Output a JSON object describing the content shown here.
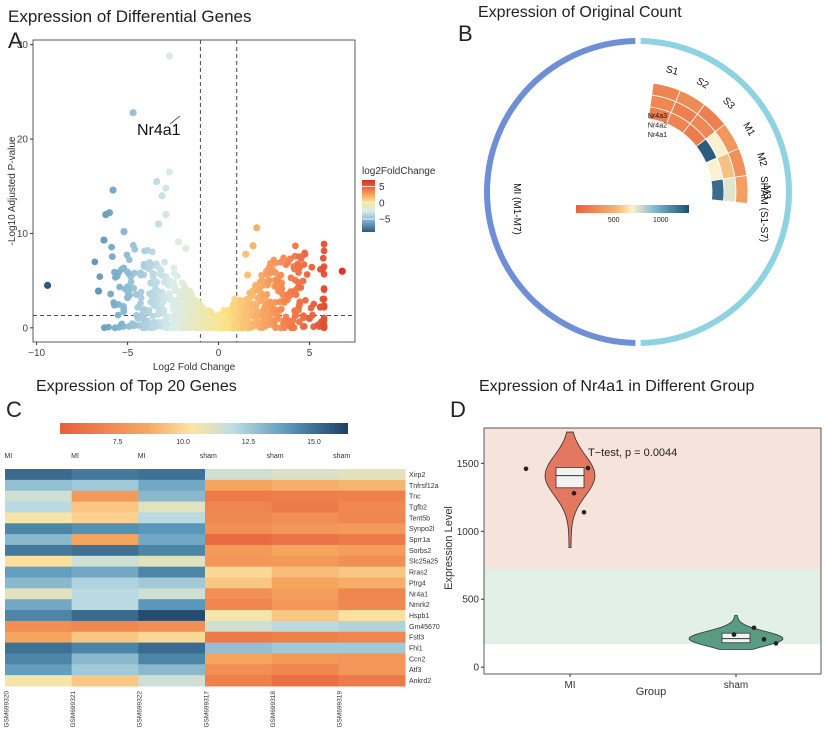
{
  "panels": {
    "A": {
      "letter": "A",
      "title": "Expression of Differential Genes"
    },
    "B": {
      "letter": "B",
      "title": "Expression of Original Count"
    },
    "C": {
      "letter": "C",
      "title": "Expression of Top 20 Genes"
    },
    "D": {
      "letter": "D",
      "title": "Expression of Nr4a1 in Different Group"
    }
  },
  "chart_data": [
    {
      "type": "scatter",
      "panel": "A",
      "title": "Expression of Differential Genes",
      "xlabel": "Log2 Fold Change",
      "ylabel": "-Log10 Adjusted P-value",
      "xlim": [
        -10.2,
        7.5
      ],
      "ylim": [
        -1.5,
        30.5
      ],
      "xticks": [
        -10,
        -5,
        0,
        5
      ],
      "yticks": [
        0,
        10,
        20,
        30
      ],
      "thresholds": {
        "x": [
          -1,
          1
        ],
        "y": 1.3
      },
      "legend": {
        "title": "log2FoldChange",
        "ticks": [
          5,
          0,
          -5
        ],
        "range": [
          -9,
          7
        ],
        "position": "right"
      },
      "annotation": {
        "label": "Nr4a1",
        "x": -3.8,
        "y": 21.3
      },
      "points": [
        {
          "x": -9.4,
          "y": 4.5
        },
        {
          "x": -4.7,
          "y": 22.8
        },
        {
          "x": -2.7,
          "y": 28.8
        },
        {
          "x": -5.8,
          "y": 14.6
        },
        {
          "x": -6.0,
          "y": 12.2
        },
        {
          "x": -6.2,
          "y": 12.0
        },
        {
          "x": -6.3,
          "y": 9.3
        },
        {
          "x": -5.2,
          "y": 10.2
        },
        {
          "x": -2.7,
          "y": 16.5
        },
        {
          "x": -3.1,
          "y": 14.0
        },
        {
          "x": -2.9,
          "y": 14.8
        },
        {
          "x": -3.4,
          "y": 15.5
        },
        {
          "x": -2.9,
          "y": 12.0
        },
        {
          "x": -3.3,
          "y": 11.0
        },
        {
          "x": 2.1,
          "y": 10.6
        },
        {
          "x": 1.5,
          "y": 7.8
        },
        {
          "x": 1.9,
          "y": 8.7
        },
        {
          "x": 2.8,
          "y": 6.4
        },
        {
          "x": 2.4,
          "y": 4.5
        },
        {
          "x": 3.2,
          "y": 4.4
        },
        {
          "x": 3.8,
          "y": 3.5
        },
        {
          "x": 5.6,
          "y": 2.2
        },
        {
          "x": 6.8,
          "y": 6.0
        },
        {
          "x": 5.0,
          "y": 1.0
        },
        {
          "x": 4.2,
          "y": 1.8
        },
        {
          "x": 1.6,
          "y": 5.6
        },
        {
          "x": -6.6,
          "y": 3.9
        },
        {
          "x": -5.0,
          "y": 3.2
        },
        {
          "x": -4.3,
          "y": 5.8
        },
        {
          "x": -3.8,
          "y": 6.9
        },
        {
          "x": -2.2,
          "y": 9.1
        },
        {
          "x": -1.8,
          "y": 8.4
        }
      ]
    },
    {
      "type": "circos-heatmap",
      "panel": "B",
      "title": "Expression of Original Count",
      "genes": [
        "Nr4a3",
        "Nr4a2",
        "Nr4a1"
      ],
      "samples": [
        "S1",
        "S2",
        "S3",
        "M1",
        "M2",
        "M3"
      ],
      "sectors": [
        "MI (M1-M7)",
        "SHAM (S1-S7)"
      ],
      "colorbar": {
        "ticks": [
          500,
          1000
        ],
        "range": [
          100,
          1300
        ]
      },
      "values": [
        [
          280,
          320,
          260,
          380,
          350,
          420
        ],
        [
          300,
          260,
          300,
          700,
          560,
          750
        ],
        [
          250,
          280,
          240,
          1250,
          700,
          1200
        ]
      ]
    },
    {
      "type": "heatmap",
      "panel": "C",
      "title": "Expression of Top 20 Genes",
      "colorbar": {
        "ticks": [
          7.5,
          10.0,
          12.5,
          15.0
        ],
        "range": [
          5.3,
          16.3
        ]
      },
      "groups": [
        "MI",
        "MI",
        "MI",
        "sham",
        "sham",
        "sham"
      ],
      "samples": [
        "GSM699320",
        "GSM699321",
        "GSM699322",
        "GSM699317",
        "GSM699318",
        "GSM699319"
      ],
      "genes": [
        "Xirp2",
        "Tnfrsf12a",
        "Tnc",
        "Tgfb2",
        "Tent5b",
        "Synpo2l",
        "Sprr1a",
        "Sorbs2",
        "Slc25a25",
        "Rras2",
        "Ptrg4",
        "Nr4a1",
        "Nmrk2",
        "Hspb1",
        "Gm45670",
        "Fstl3",
        "Fhl1",
        "Ccn2",
        "Atf3",
        "Ankrd2"
      ],
      "values": [
        [
          15.2,
          14.8,
          15.0,
          11.5,
          11.2,
          11.0
        ],
        [
          12.8,
          12.5,
          13.5,
          8.5,
          8.8,
          9.0
        ],
        [
          11.5,
          8.0,
          13.0,
          6.5,
          6.8,
          6.8
        ],
        [
          12.0,
          9.5,
          11.0,
          7.0,
          6.5,
          7.2
        ],
        [
          10.5,
          9.8,
          12.0,
          7.2,
          7.5,
          7.0
        ],
        [
          14.5,
          14.2,
          14.0,
          7.5,
          7.8,
          8.0
        ],
        [
          13.0,
          8.5,
          13.5,
          5.8,
          6.2,
          6.5
        ],
        [
          14.8,
          15.0,
          14.5,
          8.0,
          8.5,
          8.2
        ],
        [
          10.2,
          11.5,
          11.0,
          7.8,
          8.0,
          7.5
        ],
        [
          13.8,
          13.5,
          14.5,
          10.0,
          9.2,
          9.5
        ],
        [
          13.0,
          12.2,
          12.5,
          9.5,
          8.5,
          8.8
        ],
        [
          11.0,
          12.0,
          11.5,
          7.5,
          8.2,
          7.0
        ],
        [
          13.5,
          12.0,
          14.0,
          7.0,
          7.8,
          7.2
        ],
        [
          14.5,
          15.2,
          16.0,
          10.5,
          9.5,
          10.2
        ],
        [
          7.5,
          7.2,
          7.5,
          11.5,
          12.0,
          12.2
        ],
        [
          8.5,
          9.5,
          10.0,
          6.5,
          6.8,
          7.0
        ],
        [
          15.0,
          14.5,
          15.2,
          12.8,
          12.5,
          12.5
        ],
        [
          14.5,
          13.0,
          14.5,
          8.5,
          8.0,
          7.8
        ],
        [
          13.8,
          12.5,
          13.0,
          7.5,
          7.0,
          7.8
        ],
        [
          10.5,
          9.5,
          11.5,
          6.8,
          6.0,
          6.5
        ]
      ]
    },
    {
      "type": "violin",
      "panel": "D",
      "title": "Expression of Nr4a1 in Different Group",
      "xlabel": "Group",
      "ylabel": "Expression Level",
      "categories": [
        "MI",
        "sham"
      ],
      "ylim": [
        -50,
        1760
      ],
      "yticks": [
        0,
        500,
        1000,
        1500
      ],
      "annotation": "T−test, p = 0.0044",
      "bands": [
        {
          "from": 720,
          "to": 1760,
          "color": "#f5e3dc"
        },
        {
          "from": 170,
          "to": 720,
          "color": "#e3f0ea"
        }
      ],
      "series": [
        {
          "name": "MI",
          "color": "#e3775f",
          "min": 880,
          "max": 1730,
          "box": {
            "q1": 1320,
            "median": 1410,
            "q3": 1470
          },
          "points": [
            1460,
            1465,
            1140,
            1280
          ]
        },
        {
          "name": "sham",
          "color": "#5a9b86",
          "min": 130,
          "max": 380,
          "box": {
            "q1": 180,
            "median": 210,
            "q3": 250
          },
          "points": [
            290,
            240,
            205,
            175
          ]
        }
      ]
    }
  ]
}
